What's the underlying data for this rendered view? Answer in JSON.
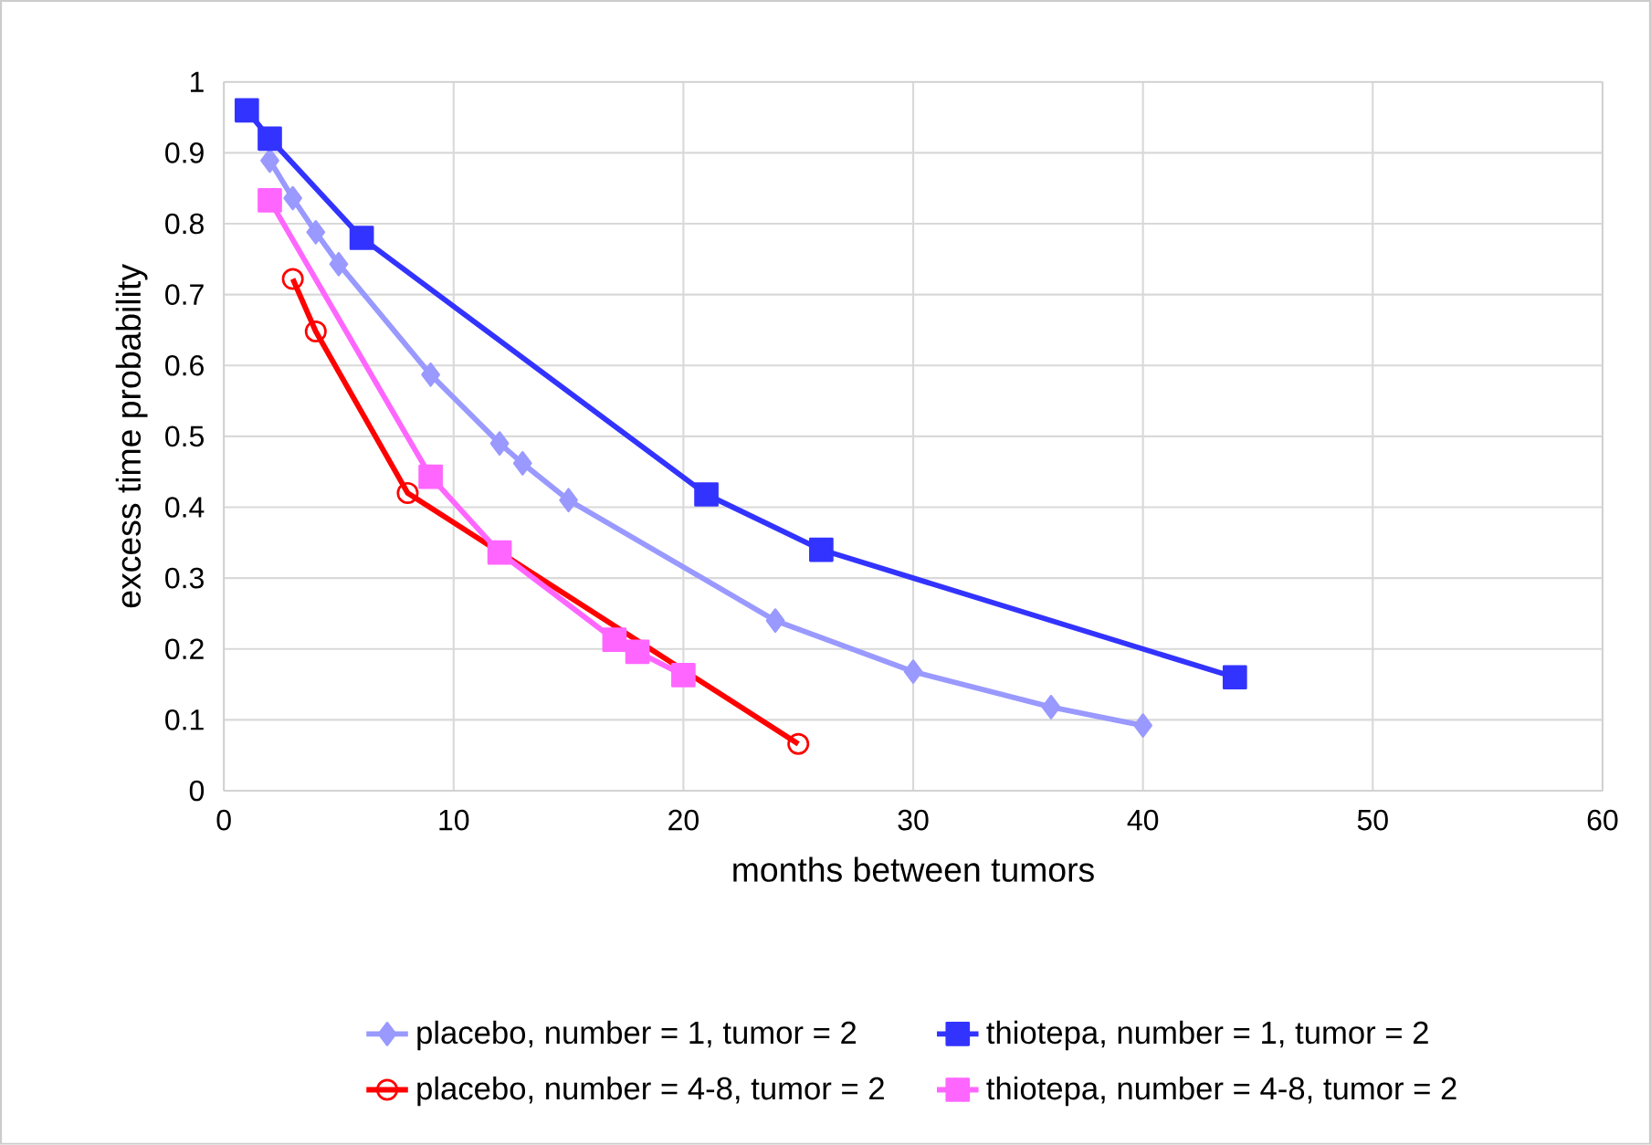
{
  "chart_data": {
    "type": "line",
    "xlabel": "months between tumors",
    "ylabel": "excess time probability",
    "xlim": [
      0,
      60
    ],
    "xticks": [
      0,
      10,
      20,
      30,
      40,
      50,
      60
    ],
    "ylim": [
      0,
      1
    ],
    "yticks": [
      0,
      0.1,
      0.2,
      0.3,
      0.4,
      0.5,
      0.6,
      0.7,
      0.8,
      0.9,
      1
    ],
    "grid": true,
    "legend": "bottom",
    "line_style": "solid",
    "series": [
      {
        "name": "placebo, number = 1, tumor = 2",
        "color": "#9999ff",
        "marker": "diamond",
        "x": [
          2,
          3,
          4,
          5,
          9,
          12,
          13,
          15,
          24,
          30,
          36,
          40
        ],
        "values": [
          0.889,
          0.836,
          0.788,
          0.743,
          0.587,
          0.49,
          0.462,
          0.41,
          0.24,
          0.168,
          0.118,
          0.092
        ]
      },
      {
        "name": "thiotepa, number = 1, tumor = 2",
        "color": "#3333ff",
        "marker": "square",
        "x": [
          1,
          2,
          6,
          21,
          26,
          44
        ],
        "values": [
          0.96,
          0.92,
          0.78,
          0.418,
          0.34,
          0.16
        ]
      },
      {
        "name": "placebo, number = 4-8, tumor = 2",
        "color": "#ff0000",
        "marker": "circle",
        "x": [
          3,
          4,
          8,
          25
        ],
        "values": [
          0.722,
          0.648,
          0.42,
          0.066
        ]
      },
      {
        "name": "thiotepa, number = 4-8, tumor = 2",
        "color": "#ff66ff",
        "marker": "square",
        "x": [
          2,
          9,
          12,
          17,
          18,
          20
        ],
        "values": [
          0.833,
          0.443,
          0.336,
          0.213,
          0.196,
          0.163
        ]
      }
    ]
  }
}
